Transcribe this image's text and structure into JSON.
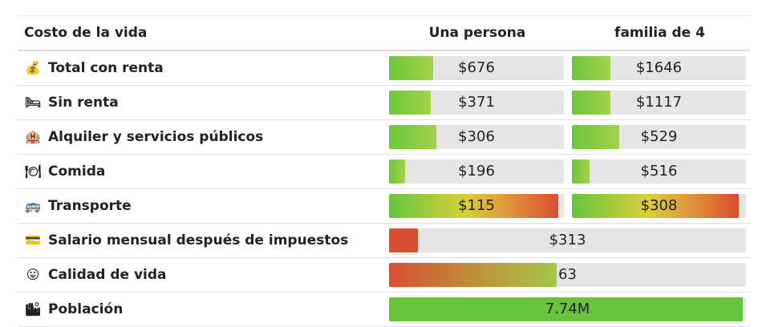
{
  "header": {
    "col0": "Costo de la vida",
    "col1": "Una persona",
    "col2": "familia de 4"
  },
  "rows": [
    {
      "icon": "money-bag-icon",
      "glyph": "💰",
      "label": "Total con renta",
      "single": "$676",
      "single_fill": 0.25,
      "family": "$1646",
      "family_fill": 0.22
    },
    {
      "icon": "bed-icon",
      "glyph": "🛏",
      "label": "Sin renta",
      "single": "$371",
      "single_fill": 0.24,
      "family": "$1117",
      "family_fill": 0.22
    },
    {
      "icon": "hotel-icon",
      "glyph": "🏨",
      "label": "Alquiler y servicios públicos",
      "single": "$306",
      "single_fill": 0.27,
      "family": "$529",
      "family_fill": 0.27
    },
    {
      "icon": "plate-icon",
      "glyph": "🍽",
      "label": "Comida",
      "single": "$196",
      "single_fill": 0.09,
      "family": "$516",
      "family_fill": 0.1
    },
    {
      "icon": "bus-icon",
      "glyph": "🚌",
      "label": "Transporte",
      "single": "$115",
      "single_fill": 0.97,
      "family": "$308",
      "family_fill": 0.96
    }
  ],
  "wide_rows": [
    {
      "icon": "credit-card-icon",
      "glyph": "💳",
      "label": "Salario mensual después de impuestos",
      "value": "$313",
      "fill": 0.08
    },
    {
      "icon": "smiley-icon",
      "glyph": "😛",
      "label": "Calidad de vida",
      "value": "63",
      "fill": 0.47
    },
    {
      "icon": "city-icon",
      "glyph": "🏙",
      "label": "Población",
      "value": "7.74M",
      "fill": 0.99
    }
  ],
  "colors": {
    "green": "#67c43d",
    "red": "#d94e30",
    "track": "#e5e5e5"
  }
}
